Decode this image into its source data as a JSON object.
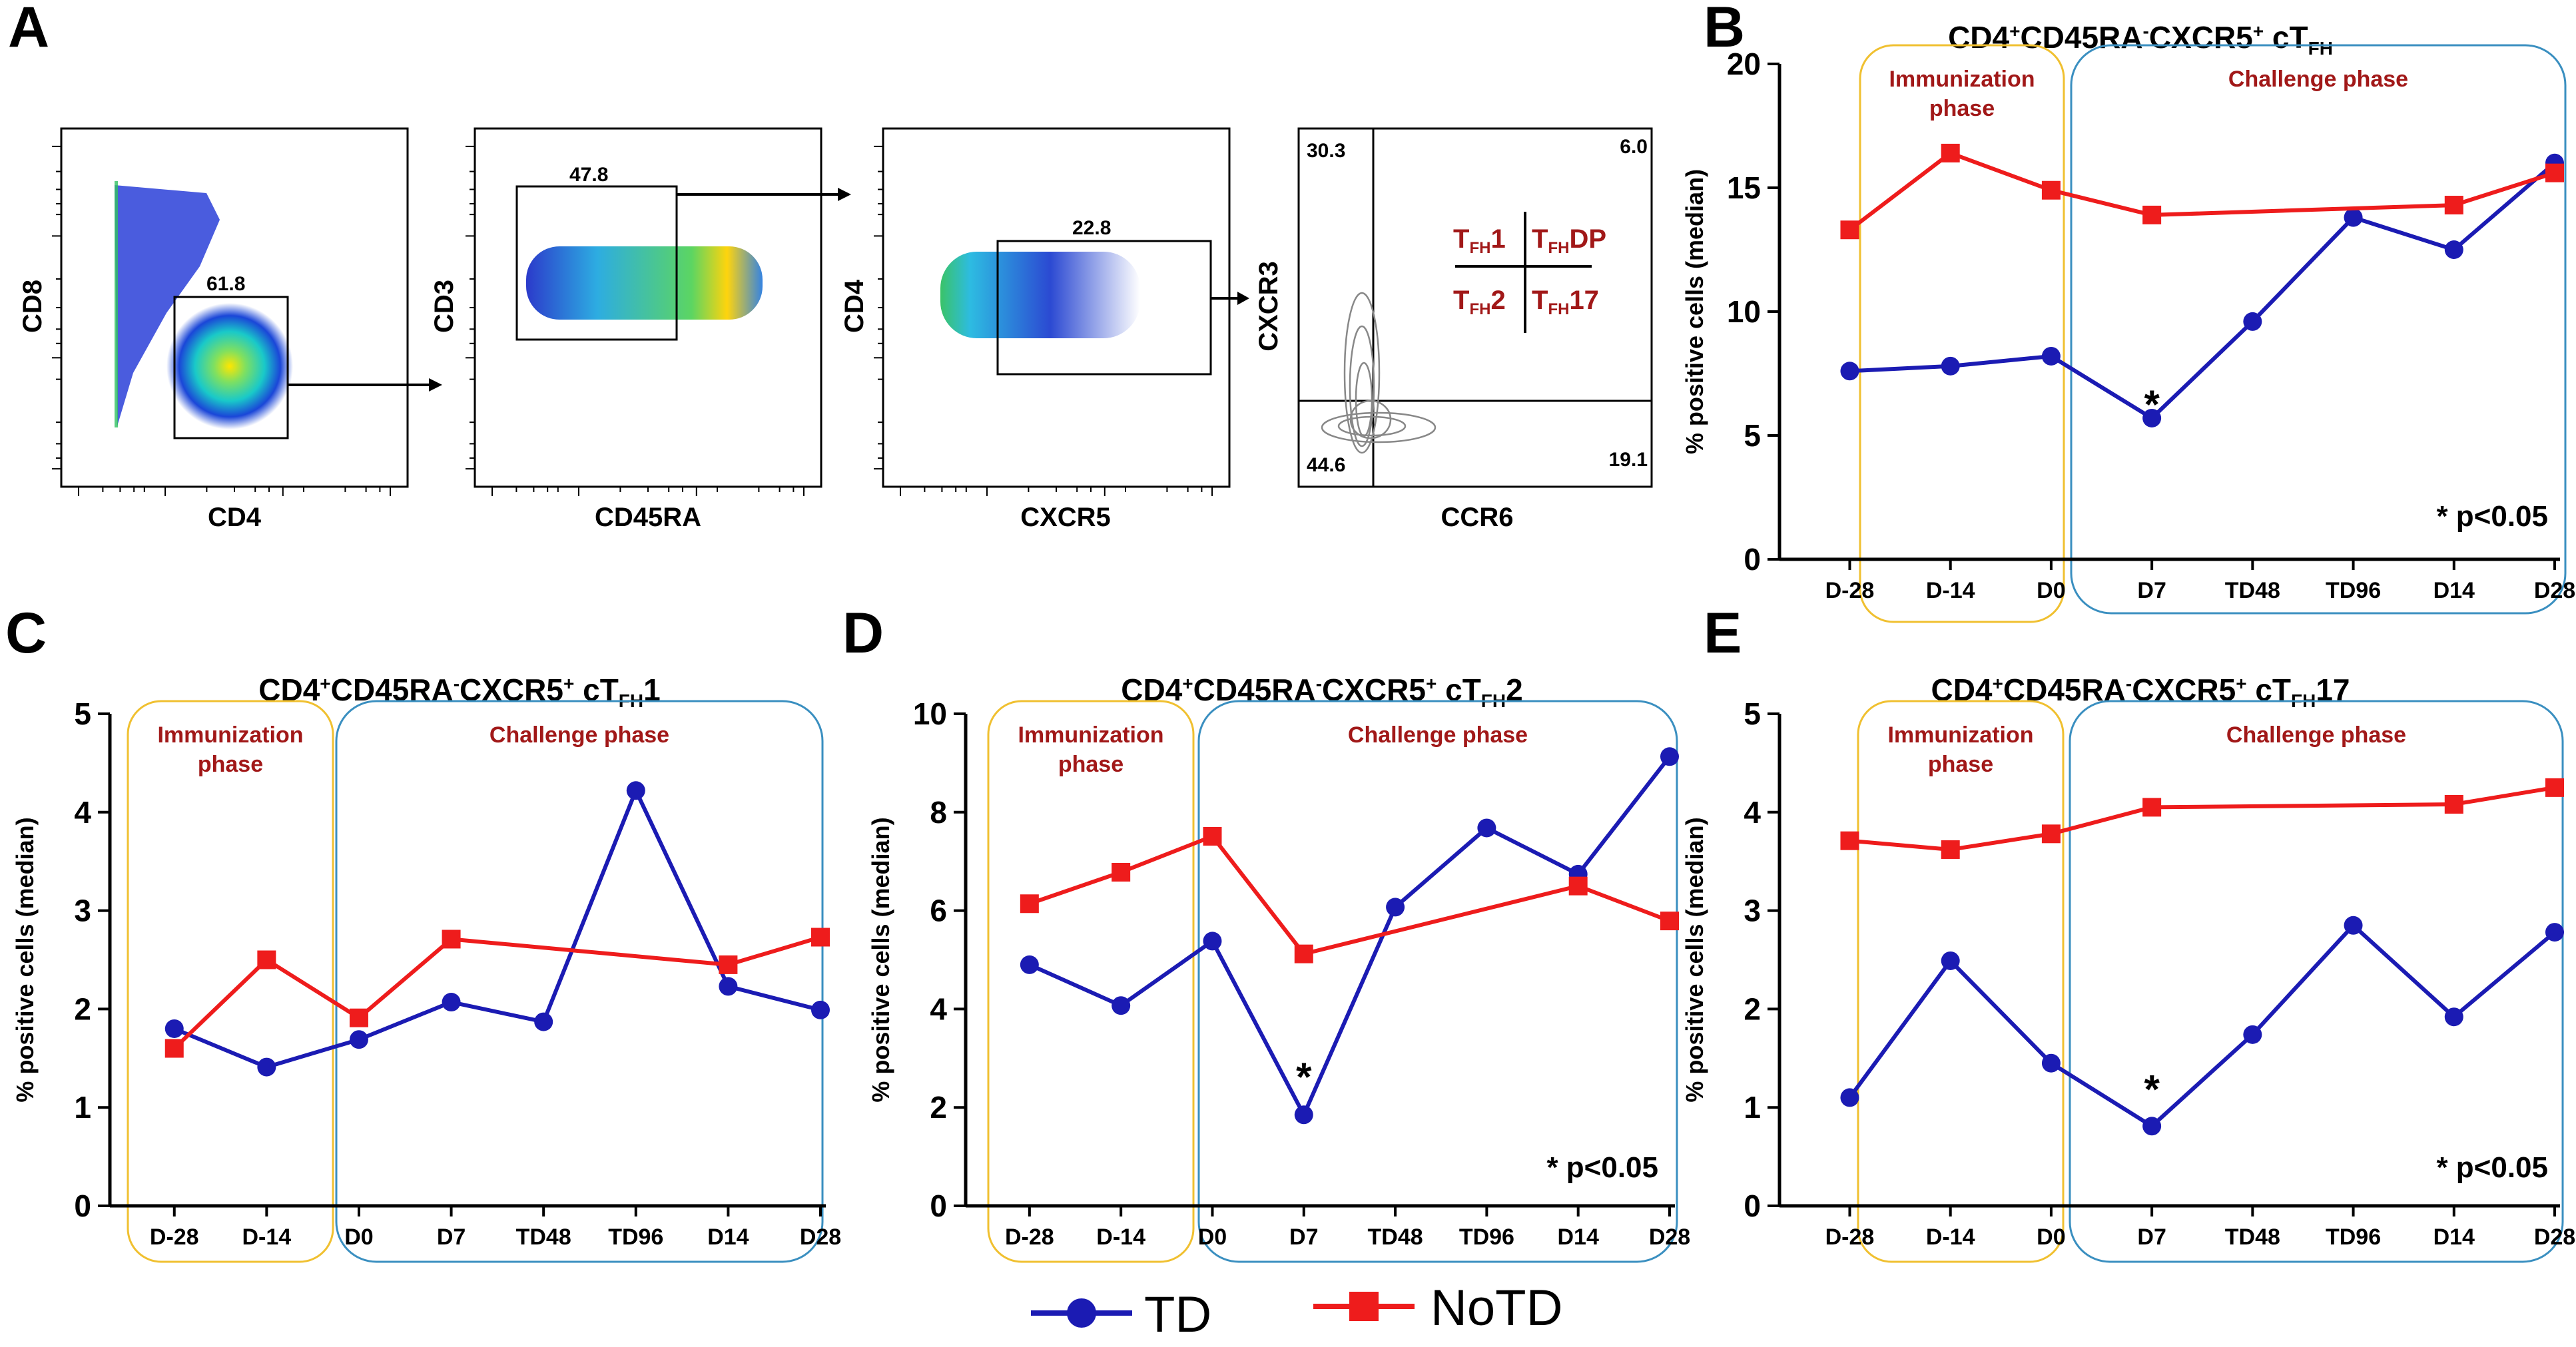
{
  "colors": {
    "td": "#1b1bb3",
    "notd": "#ee1c1c",
    "immunization_box": "#f0c030",
    "challenge_box": "#3a8fc0",
    "phase_text": "#a11818"
  },
  "legend": {
    "td_label": "TD",
    "notd_label": "NoTD"
  },
  "panel_a": {
    "letter": "A",
    "plots": [
      {
        "xlabel": "CD4",
        "ylabel": "CD8",
        "gate_value": "61.8"
      },
      {
        "xlabel": "CD45RA",
        "ylabel": "CD3",
        "gate_value": "47.8"
      },
      {
        "xlabel": "CXCR5",
        "ylabel": "CD4",
        "gate_value": "22.8"
      },
      {
        "xlabel": "CCR6",
        "ylabel": "CXCR3",
        "q_tl": "30.3",
        "q_tr": "6.0",
        "q_bl": "44.6",
        "q_br": "19.1",
        "legend_tl": {
          "main": "T",
          "sub": "FH",
          "suf": "1"
        },
        "legend_tr": {
          "main": "T",
          "sub": "FH",
          "suf": "DP"
        },
        "legend_bl": {
          "main": "T",
          "sub": "FH",
          "suf": "2"
        },
        "legend_br": {
          "main": "T",
          "sub": "FH",
          "suf": "17"
        }
      }
    ]
  },
  "chart_data": [
    {
      "panel": "B",
      "type": "line",
      "title": "CD4+CD45RA-CXCR5+ cTFH",
      "ylabel": "% positive cells (median)",
      "ylim": [
        0,
        20
      ],
      "yticks": [
        0,
        5,
        10,
        15,
        20
      ],
      "categories": [
        "D-28",
        "D-14",
        "D0",
        "D7",
        "TD48",
        "TD96",
        "D14",
        "D28"
      ],
      "series": [
        {
          "name": "TD",
          "x": [
            "D-28",
            "D-14",
            "D0",
            "D7",
            "TD48",
            "TD96",
            "D14",
            "D28"
          ],
          "values": [
            7.6,
            7.8,
            8.2,
            5.7,
            9.6,
            13.8,
            12.5,
            16.0
          ]
        },
        {
          "name": "NoTD",
          "x": [
            "D-28",
            "D-14",
            "D0",
            "D7",
            "D14",
            "D28"
          ],
          "values": [
            13.3,
            16.4,
            14.9,
            13.9,
            14.3,
            15.6
          ]
        }
      ],
      "annotations": {
        "star": "*",
        "star_at": "D7",
        "star_value": 6.5,
        "significance": "* p<0.05"
      },
      "phases": {
        "immunization": "Immunization phase",
        "challenge": "Challenge phase"
      }
    },
    {
      "panel": "C",
      "type": "line",
      "title": "CD4+CD45RA-CXCR5+ cTFH1",
      "ylabel": "% positive cells (median)",
      "ylim": [
        0,
        5
      ],
      "yticks": [
        0,
        1,
        2,
        3,
        4,
        5
      ],
      "categories": [
        "D-28",
        "D-14",
        "D0",
        "D7",
        "TD48",
        "TD96",
        "D14",
        "D28"
      ],
      "series": [
        {
          "name": "TD",
          "x": [
            "D-28",
            "D-14",
            "D0",
            "D7",
            "TD48",
            "TD96",
            "D14",
            "D28"
          ],
          "values": [
            1.8,
            1.41,
            1.69,
            2.07,
            1.87,
            4.22,
            2.23,
            1.99
          ]
        },
        {
          "name": "NoTD",
          "x": [
            "D-28",
            "D-14",
            "D0",
            "D7",
            "D14",
            "D28"
          ],
          "values": [
            1.6,
            2.5,
            1.91,
            2.71,
            2.45,
            2.73
          ]
        }
      ],
      "phases": {
        "immunization": "Immunization phase",
        "challenge": "Challenge phase"
      }
    },
    {
      "panel": "D",
      "type": "line",
      "title": "CD4+CD45RA-CXCR5+ cTFH2",
      "ylabel": "% positive cells (median)",
      "ylim": [
        0,
        10
      ],
      "yticks": [
        0,
        2,
        4,
        6,
        8,
        10
      ],
      "categories": [
        "D-28",
        "D-14",
        "D0",
        "D7",
        "TD48",
        "TD96",
        "D14",
        "D28"
      ],
      "series": [
        {
          "name": "TD",
          "x": [
            "D-28",
            "D-14",
            "D0",
            "D7",
            "TD48",
            "TD96",
            "D14",
            "D28"
          ],
          "values": [
            4.9,
            4.07,
            5.38,
            1.85,
            6.07,
            7.68,
            6.74,
            9.13
          ]
        },
        {
          "name": "NoTD",
          "x": [
            "D-28",
            "D-14",
            "D0",
            "D7",
            "D14",
            "D28"
          ],
          "values": [
            6.14,
            6.78,
            7.51,
            5.12,
            6.5,
            5.79
          ]
        }
      ],
      "annotations": {
        "star": "*",
        "star_at": "D7",
        "star_value": 2.75,
        "significance": "* p<0.05"
      },
      "phases": {
        "immunization": "Immunization phase",
        "challenge": "Challenge phase"
      }
    },
    {
      "panel": "E",
      "type": "line",
      "title": "CD4+CD45RA-CXCR5+ cTFH17",
      "ylabel": "% positive cells (median)",
      "ylim": [
        0,
        5
      ],
      "yticks": [
        0,
        1,
        2,
        3,
        4,
        5
      ],
      "categories": [
        "D-28",
        "D-14",
        "D0",
        "D7",
        "TD48",
        "TD96",
        "D14",
        "D28"
      ],
      "series": [
        {
          "name": "TD",
          "x": [
            "D-28",
            "D-14",
            "D0",
            "D7",
            "TD48",
            "TD96",
            "D14",
            "D28"
          ],
          "values": [
            1.1,
            2.49,
            1.45,
            0.81,
            1.74,
            2.85,
            1.92,
            2.78
          ]
        },
        {
          "name": "NoTD",
          "x": [
            "D-28",
            "D-14",
            "D0",
            "D7",
            "D14",
            "D28"
          ],
          "values": [
            3.71,
            3.62,
            3.78,
            4.05,
            4.08,
            4.25
          ]
        }
      ],
      "annotations": {
        "star": "*",
        "star_at": "D7",
        "star_value": 1.25,
        "significance": "* p<0.05"
      },
      "phases": {
        "immunization": "Immunization phase",
        "challenge": "Challenge phase"
      }
    }
  ],
  "titles": {
    "B": {
      "p1": "CD4",
      "s1": "+",
      "p2": "CD45RA",
      "s2": "-",
      "p3": "CXCR5",
      "s3": "+",
      "p4": " cT",
      "sub": "FH",
      "suf": ""
    },
    "C": {
      "p1": "CD4",
      "s1": "+",
      "p2": "CD45RA",
      "s2": "-",
      "p3": "CXCR5",
      "s3": "+",
      "p4": " cT",
      "sub": "FH",
      "suf": "1"
    },
    "D": {
      "p1": "CD4",
      "s1": "+",
      "p2": "CD45RA",
      "s2": "-",
      "p3": "CXCR5",
      "s3": "+",
      "p4": " cT",
      "sub": "FH",
      "suf": "2"
    },
    "E": {
      "p1": "CD4",
      "s1": "+",
      "p2": "CD45RA",
      "s2": "-",
      "p3": "CXCR5",
      "s3": "+",
      "p4": " cT",
      "sub": "FH",
      "suf": "17"
    }
  },
  "phase_labels": {
    "immunization_line1": "Immunization",
    "immunization_line2": "phase",
    "challenge": "Challenge phase"
  }
}
